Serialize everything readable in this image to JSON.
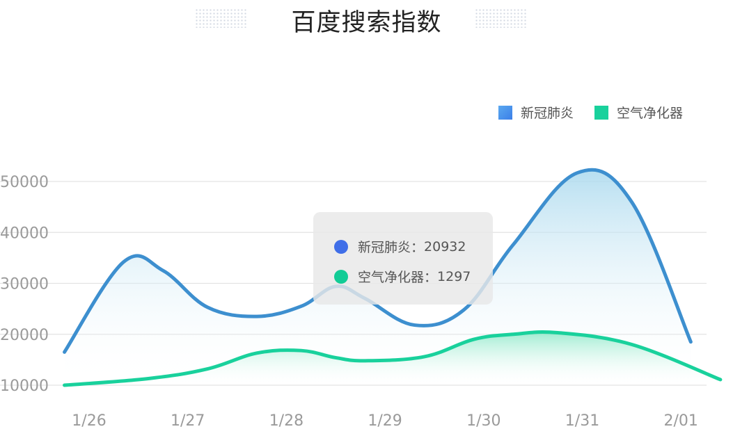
{
  "title": "百度搜索指数",
  "colors": {
    "series1": "#3d8fcf",
    "series1_fill_top": "#aad9ee",
    "series2": "#19d19c",
    "series2_fill_top": "#7fe6c1",
    "legend_swatch1": "#3b7fe8",
    "grid": "#e3e3e3",
    "tooltip_dot1": "#3f6ee8",
    "tooltip_dot2": "#12cc96"
  },
  "legend": [
    {
      "label": "新冠肺炎"
    },
    {
      "label": "空气净化器"
    }
  ],
  "tooltip": {
    "rows": [
      {
        "label": "新冠肺炎",
        "separator": "：",
        "value": "20932"
      },
      {
        "label": "空气净化器",
        "separator": "：",
        "value": "1297"
      }
    ]
  },
  "chart_data": {
    "type": "area",
    "title": "百度搜索指数",
    "categories": [
      "1/26",
      "1/27",
      "1/28",
      "1/29",
      "1/30",
      "1/31",
      "2/01"
    ],
    "y_ticks": [
      "10000",
      "20000",
      "30000",
      "40000",
      "50000"
    ],
    "ylim": [
      10000,
      50000
    ],
    "grid": true,
    "legend_position": "top-right",
    "series": [
      {
        "name": "新冠肺炎",
        "x": [
          -0.25,
          0.35,
          0.75,
          1.2,
          1.7,
          2.15,
          2.5,
          2.8,
          3.3,
          3.8,
          4.3,
          4.95,
          5.5,
          6.1
        ],
        "values": [
          16500,
          34200,
          32500,
          25300,
          23500,
          25500,
          29400,
          27000,
          21800,
          24800,
          37600,
          51700,
          46000,
          18500
        ]
      },
      {
        "name": "空气净化器",
        "x": [
          -0.25,
          0.6,
          1.2,
          1.7,
          2.15,
          2.5,
          2.8,
          3.4,
          3.9,
          4.3,
          4.75,
          5.5,
          6.4
        ],
        "values": [
          10000,
          11300,
          13200,
          16300,
          16800,
          15400,
          14800,
          15600,
          19000,
          20000,
          20300,
          18000,
          11100
        ]
      }
    ]
  }
}
